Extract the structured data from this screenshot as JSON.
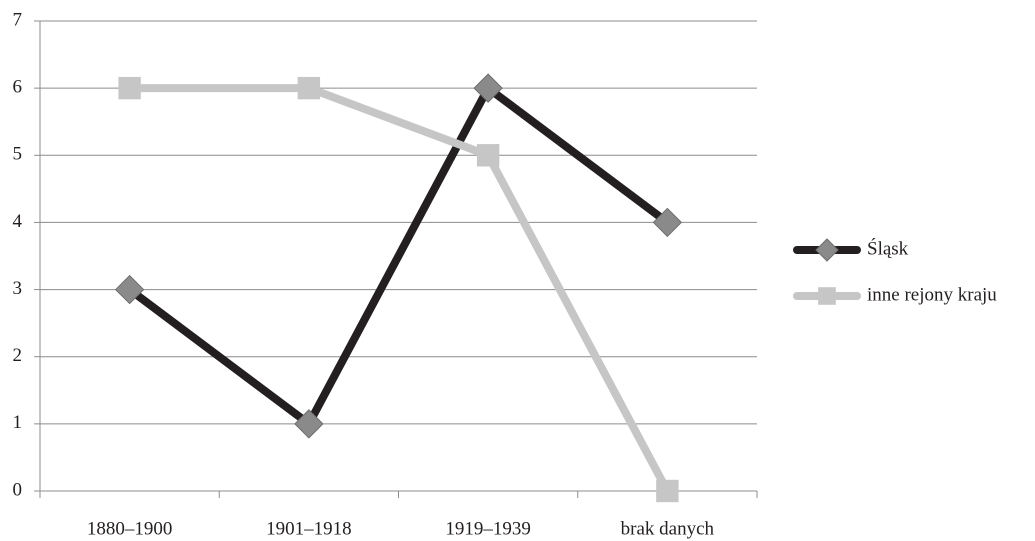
{
  "chart_data": {
    "type": "line",
    "categories": [
      "1880–1900",
      "1901–1918",
      "1919–1939",
      "brak danych"
    ],
    "series": [
      {
        "name": "Śląsk",
        "color": "#231f20",
        "marker_color": "#8a8a8a",
        "marker": "diamond",
        "values": [
          3,
          1,
          6,
          4
        ]
      },
      {
        "name": "inne rejony kraju",
        "color": "#c6c6c6",
        "marker_color": "#c6c6c6",
        "marker": "square",
        "values": [
          6,
          6,
          5,
          0
        ]
      }
    ],
    "ylim": [
      0,
      7
    ],
    "yticks": [
      0,
      1,
      2,
      3,
      4,
      5,
      6,
      7
    ],
    "grid": true,
    "legend": "right"
  }
}
